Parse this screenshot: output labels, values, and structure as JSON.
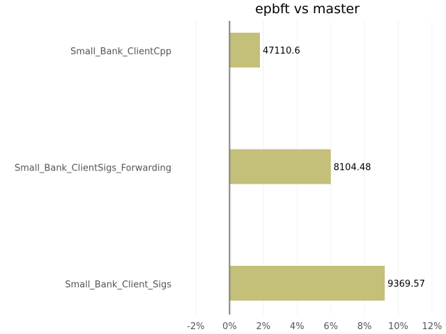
{
  "chart_data": {
    "type": "bar",
    "orientation": "horizontal",
    "title": "epbft vs master",
    "xlabel": "",
    "ylabel": "",
    "categories": [
      "Small_Bank_ClientCpp",
      "Small_Bank_ClientSigs_Forwarding",
      "Small_Bank_Client_Sigs"
    ],
    "values": [
      1.8,
      6.0,
      9.2
    ],
    "data_labels": [
      "47110.6",
      "8104.48",
      "9369.57"
    ],
    "xlim": [
      -2,
      12.5
    ],
    "xticks": [
      -2,
      0,
      2,
      4,
      6,
      8,
      10,
      12
    ],
    "xtick_labels": [
      "-2%",
      "0%",
      "2%",
      "4%",
      "6%",
      "8%",
      "10%",
      "12%"
    ],
    "bar_color": "#c4bf79",
    "zero_line_color": "#808080",
    "grid": true,
    "grid_color": "#f2f2f2",
    "legend": "none"
  }
}
